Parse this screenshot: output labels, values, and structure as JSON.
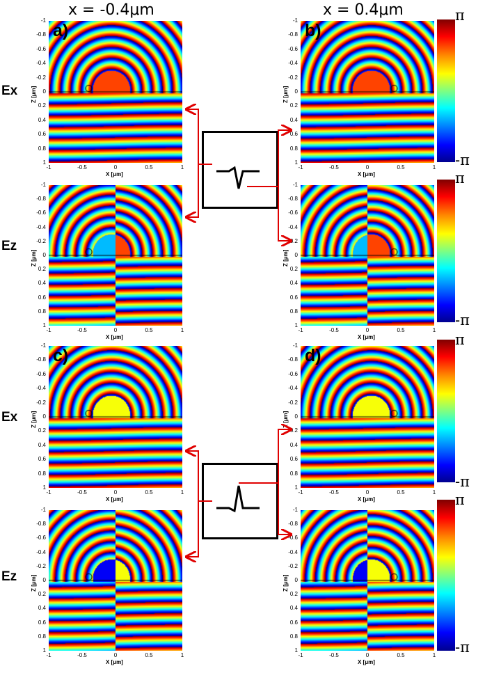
{
  "column_titles": {
    "left": "x = -0.4μm",
    "right": "x = 0.4μm"
  },
  "row_labels": {
    "ex": "Ex",
    "ez": "Ez"
  },
  "panels": [
    {
      "letter": "a)",
      "component": "Ex",
      "source_x": -0.4
    },
    {
      "letter": "",
      "component": "Ez",
      "source_x": -0.4
    },
    {
      "letter": "b)",
      "component": "Ex",
      "source_x": 0.4
    },
    {
      "letter": "",
      "component": "Ez",
      "source_x": 0.4
    },
    {
      "letter": "c)",
      "component": "Ex",
      "source_x": -0.4
    },
    {
      "letter": "",
      "component": "Ez",
      "source_x": -0.4
    },
    {
      "letter": "d)",
      "component": "Ex",
      "source_x": 0.4
    },
    {
      "letter": "",
      "component": "Ez",
      "source_x": 0.4
    }
  ],
  "axes": {
    "x_label": "X [μm]",
    "z_label": "Z [μm]",
    "x_ticks": [
      "-1",
      "-0.5",
      "0",
      "0.5",
      "1"
    ],
    "z_ticks": [
      "-1",
      "-0.8",
      "-0.6",
      "-0.4",
      "-0.2",
      "0",
      "0.2",
      "0.4",
      "0.6",
      "0.8",
      "1"
    ]
  },
  "colorbar": {
    "top_label": "π",
    "bottom_label": "-π",
    "colormap": "jet"
  },
  "colors": {
    "arrow": "#e00000",
    "pulse_line": "#000000"
  }
}
